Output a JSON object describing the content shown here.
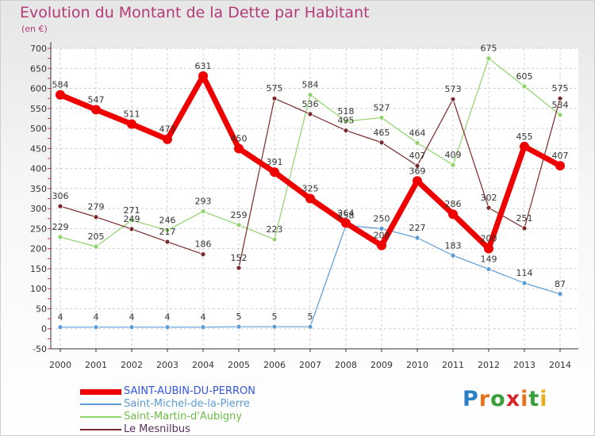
{
  "title": "Evolution du Montant de la Dette par Habitant",
  "subtitle": "(en €)",
  "logo": {
    "letters": [
      "P",
      "r",
      "o",
      "x",
      "i",
      "t",
      "i"
    ],
    "colors": [
      "#2b7fc4",
      "#e8731e",
      "#3a9e3a",
      "#d6282b",
      "#e8731e",
      "#3a9e3a",
      "#e8b01e"
    ]
  },
  "chart_data": {
    "type": "line",
    "x": [
      2000,
      2001,
      2002,
      2003,
      2004,
      2005,
      2006,
      2007,
      2008,
      2009,
      2010,
      2011,
      2012,
      2013,
      2014
    ],
    "ylim": [
      -50,
      700
    ],
    "yticks": [
      -50,
      0,
      50,
      100,
      150,
      200,
      250,
      300,
      350,
      400,
      450,
      500,
      550,
      600,
      650,
      700
    ],
    "grid": true,
    "legend_position": "bottom-left",
    "series": [
      {
        "name": "SAINT-AUBIN-DU-PERRON",
        "color": "#ee0000",
        "width": 7,
        "marker": 6,
        "values": [
          584,
          547,
          511,
          473,
          631,
          450,
          391,
          325,
          264,
          208,
          369,
          286,
          200,
          455,
          407
        ],
        "segments": [
          [
            0,
            14
          ]
        ],
        "labels": [
          "584",
          "547",
          "511",
          "473",
          "631",
          "450",
          "391",
          "325",
          "264",
          "208",
          "369",
          "286",
          "200",
          "455",
          "407"
        ]
      },
      {
        "name": "Saint-Michel-de-la-Pierre",
        "color": "#5b9bd5",
        "width": 1.2,
        "marker": 3,
        "values": [
          4,
          4,
          4,
          4,
          4,
          5,
          5,
          5,
          258,
          250,
          227,
          183,
          149,
          114,
          87
        ],
        "segments": [
          [
            0,
            14
          ]
        ],
        "labels": [
          "4",
          "4",
          "4",
          "4",
          "4",
          "5",
          "5",
          "5",
          "258",
          "250",
          "227",
          "183",
          "149",
          "114",
          "87"
        ]
      },
      {
        "name": "Saint-Martin-d'Aubigny",
        "color": "#8fd46a",
        "width": 1.2,
        "marker": 3,
        "values": [
          229,
          205,
          271,
          246,
          293,
          259,
          223,
          584,
          518,
          527,
          464,
          409,
          675,
          605,
          534
        ],
        "segments": [
          [
            0,
            14
          ]
        ],
        "labels": [
          "229",
          "205",
          "271",
          "246",
          "293",
          "259",
          "223",
          "584",
          "518",
          "527",
          "464",
          "409",
          "675",
          "605",
          "534"
        ]
      },
      {
        "name": "Le Mesnilbus",
        "color": "#7a2a2a",
        "width": 1.2,
        "marker": 3,
        "values": [
          306,
          279,
          249,
          217,
          186,
          152,
          575,
          536,
          495,
          465,
          407,
          573,
          302,
          251,
          575
        ],
        "segments": [
          [
            0,
            4
          ],
          [
            5,
            14
          ]
        ],
        "labels": [
          "306",
          "279",
          "249",
          "217",
          "186",
          "152",
          "575",
          "536",
          "495",
          "465",
          "407",
          "573",
          "302",
          "251",
          "575"
        ]
      }
    ]
  }
}
